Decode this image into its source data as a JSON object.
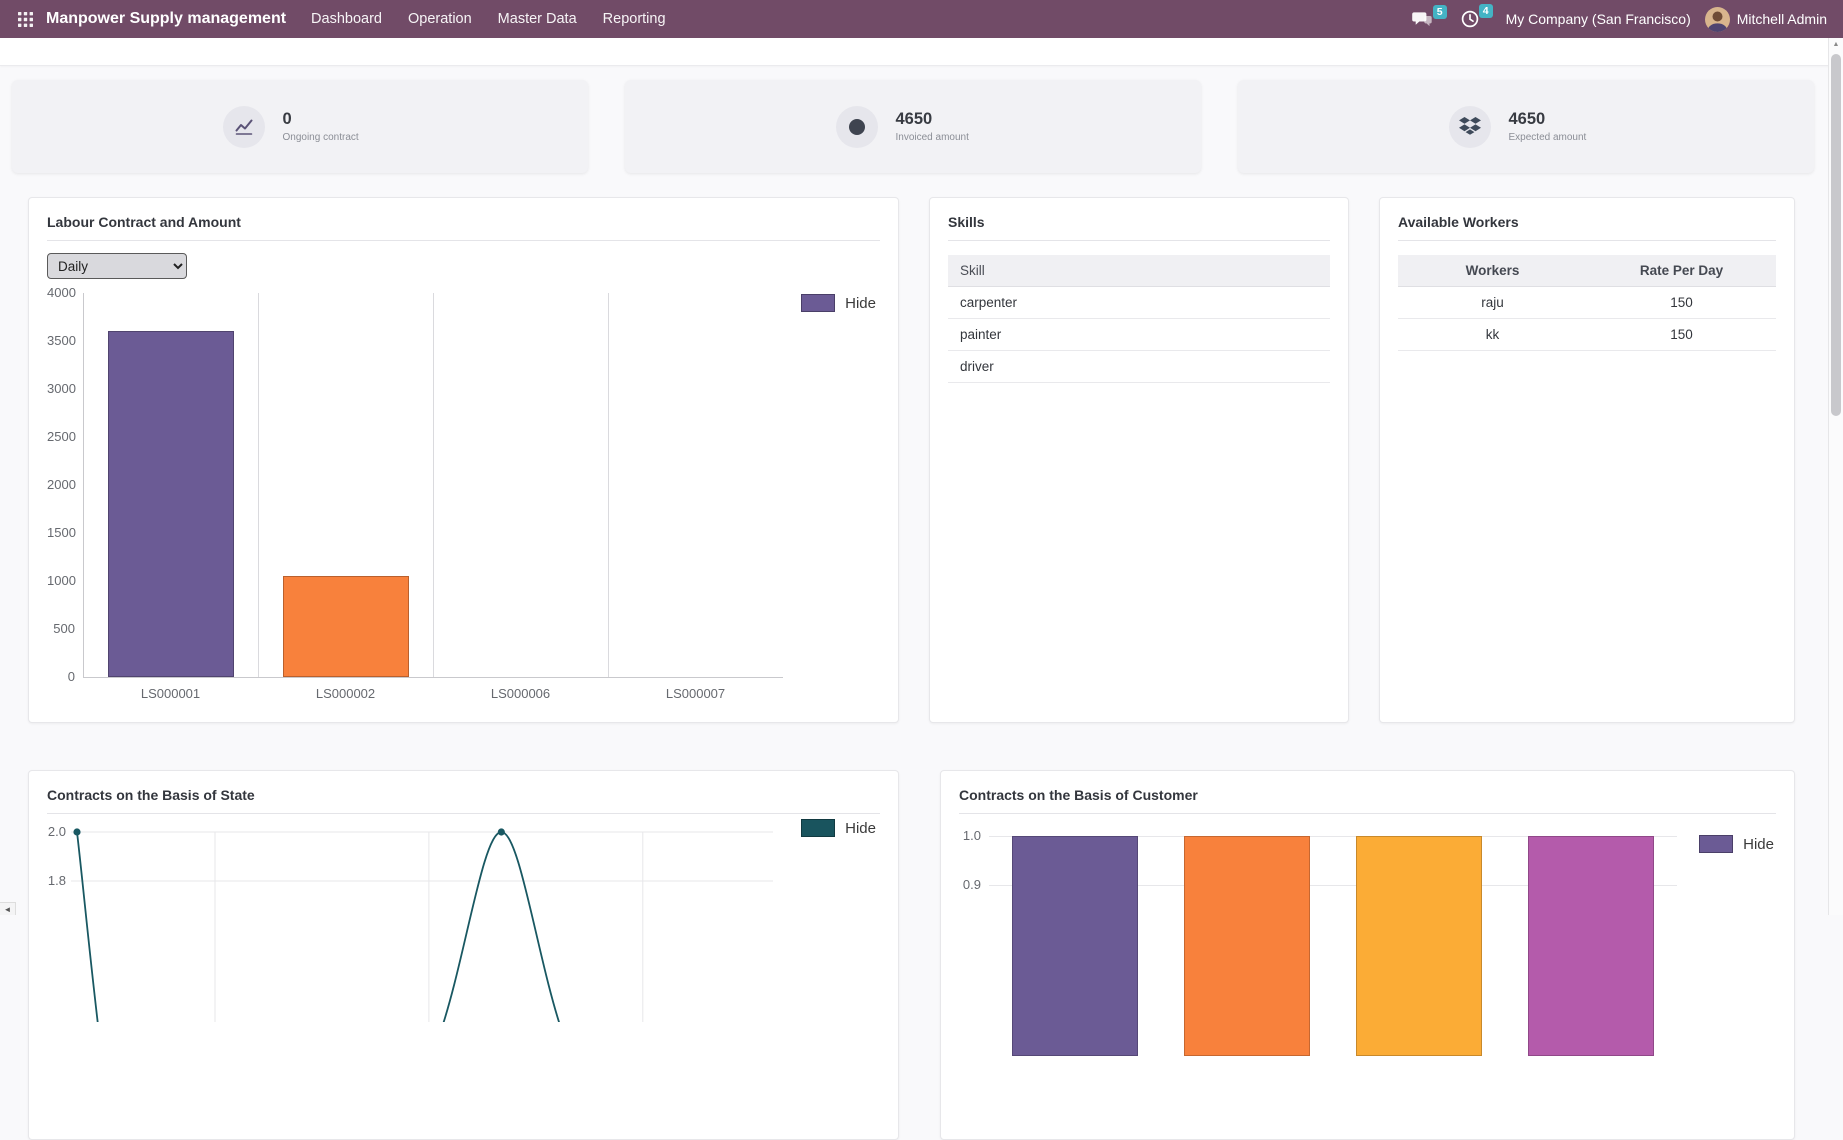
{
  "navbar": {
    "app_title": "Manpower Supply management",
    "menu": [
      "Dashboard",
      "Operation",
      "Master Data",
      "Reporting"
    ],
    "messages_badge": "5",
    "activities_badge": "4",
    "company_label": "My Company (San Francisco)",
    "user_name": "Mitchell Admin",
    "colors": {
      "bg": "#714B67",
      "badge": "#44b3c4"
    }
  },
  "kpis": [
    {
      "value": "0",
      "label": "Ongoing contract",
      "icon": "line-chart-icon"
    },
    {
      "value": "4650",
      "label": "Invoiced amount",
      "icon": "dot-circle-icon"
    },
    {
      "value": "4650",
      "label": "Expected amount",
      "icon": "dropbox-icon"
    }
  ],
  "labour_panel": {
    "title": "Labour Contract and Amount",
    "filter_selected": "Daily",
    "legend_label": "Hide"
  },
  "skills_panel": {
    "title": "Skills",
    "column_header": "Skill",
    "rows": [
      "carpenter",
      "painter",
      "driver"
    ]
  },
  "workers_panel": {
    "title": "Available Workers",
    "column_headers": [
      "Workers",
      "Rate Per Day"
    ],
    "rows": [
      {
        "worker": "raju",
        "rate": "150"
      },
      {
        "worker": "kk",
        "rate": "150"
      }
    ]
  },
  "state_panel": {
    "title": "Contracts on the Basis of State",
    "legend_label": "Hide"
  },
  "customer_panel": {
    "title": "Contracts on the Basis of Customer",
    "legend_label": "Hide"
  },
  "chart_data": [
    {
      "type": "bar",
      "title": "Labour Contract and Amount",
      "categories": [
        "LS000001",
        "LS000002",
        "LS000006",
        "LS000007"
      ],
      "values": [
        3600,
        1050,
        0,
        0
      ],
      "bar_colors": [
        "#6b5b95",
        "#f8813c",
        "#6b5b95",
        "#6b5b95"
      ],
      "ylim": [
        0,
        4000
      ],
      "ytick_step": 500,
      "yticks": [
        0,
        500,
        1000,
        1500,
        2000,
        2500,
        3000,
        3500,
        4000
      ],
      "grid": "vertical",
      "legend": [
        {
          "label": "Hide",
          "color": "#6b5b95"
        }
      ],
      "legend_position": "right"
    },
    {
      "type": "line",
      "title": "Contracts on the Basis of State",
      "line_color": "#195862",
      "visible_yticks": [
        "2.0",
        "1.8"
      ],
      "visible_points": [
        {
          "x_frac": 0.0,
          "y": 2.0
        },
        {
          "x_frac": 0.615,
          "y": 2.0
        }
      ],
      "note": "chart truncated by viewport bottom; line dips below the visible area between the two peaks at 2.0",
      "legend": [
        {
          "label": "Hide",
          "color": "#19545e"
        }
      ],
      "legend_position": "right"
    },
    {
      "type": "bar",
      "title": "Contracts on the Basis of Customer",
      "visible_yticks": [
        "1.0",
        "0.9"
      ],
      "values": [
        1,
        1,
        1,
        1
      ],
      "bar_colors": [
        "#6b5b95",
        "#f8813c",
        "#fbac36",
        "#b45bab"
      ],
      "note": "chart truncated by viewport bottom; all four visible bars start at the 1.0 gridline, category labels not visible",
      "legend": [
        {
          "label": "Hide",
          "color": "#6b5b95"
        }
      ],
      "legend_position": "right"
    }
  ]
}
